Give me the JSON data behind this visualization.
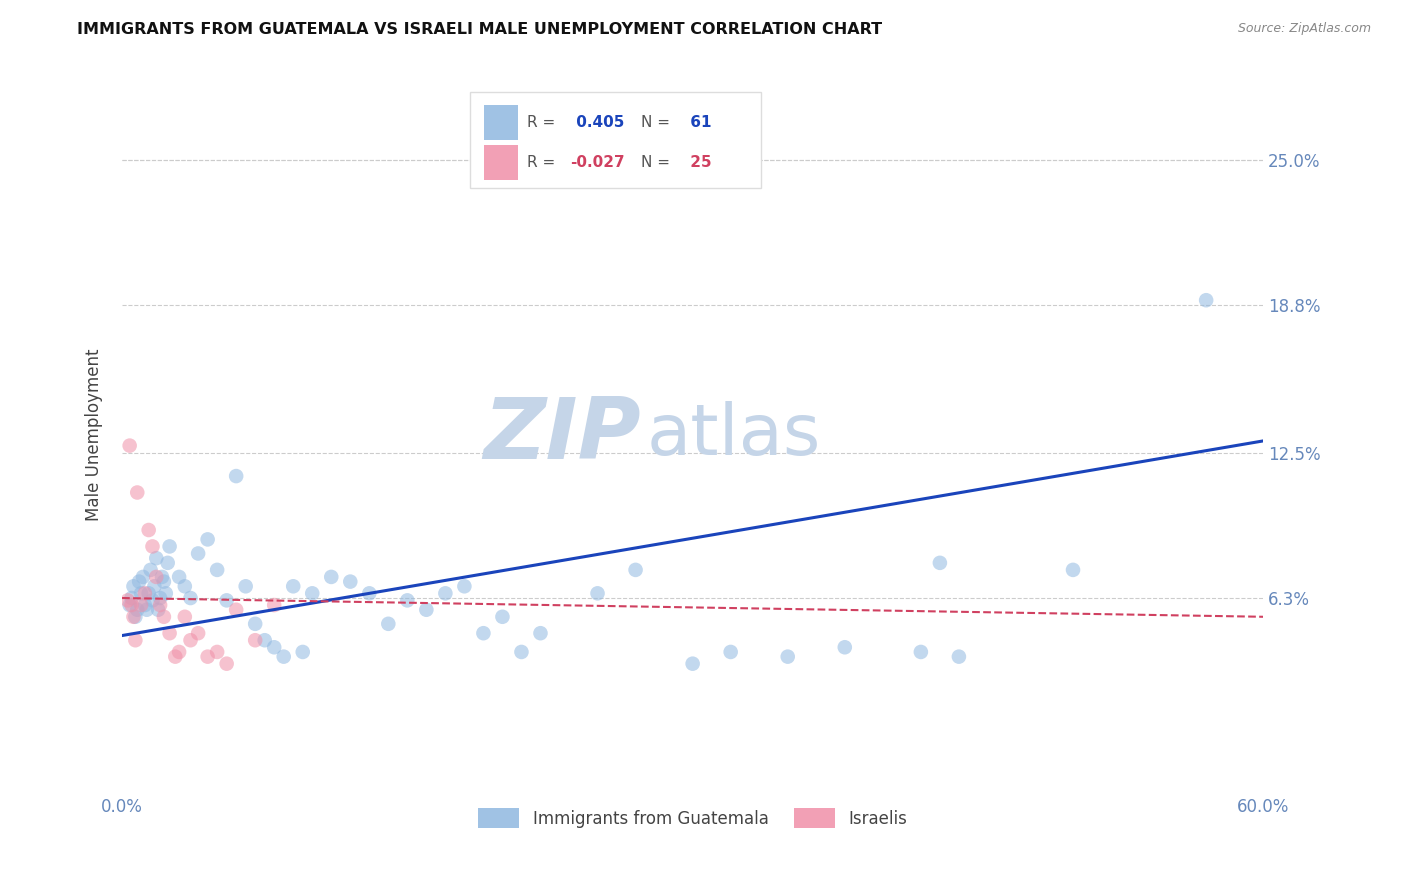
{
  "title": "IMMIGRANTS FROM GUATEMALA VS ISRAELI MALE UNEMPLOYMENT CORRELATION CHART",
  "source": "Source: ZipAtlas.com",
  "ylabel": "Male Unemployment",
  "xlim": [
    0.0,
    0.6
  ],
  "ylim": [
    -0.02,
    0.285
  ],
  "yticks": [
    0.063,
    0.125,
    0.188,
    0.25
  ],
  "ytick_labels": [
    "6.3%",
    "12.5%",
    "18.8%",
    "25.0%"
  ],
  "legend_R_blue": "0.405",
  "legend_N_blue": "61",
  "legend_R_pink": "-0.027",
  "legend_N_pink": "25",
  "legend_label_blue": "Immigrants from Guatemala",
  "legend_label_pink": "Israelis",
  "blue_scatter_x": [
    0.004,
    0.005,
    0.006,
    0.007,
    0.008,
    0.009,
    0.01,
    0.011,
    0.012,
    0.013,
    0.014,
    0.015,
    0.016,
    0.017,
    0.018,
    0.019,
    0.02,
    0.021,
    0.022,
    0.023,
    0.024,
    0.025,
    0.03,
    0.033,
    0.036,
    0.04,
    0.045,
    0.05,
    0.055,
    0.06,
    0.065,
    0.07,
    0.075,
    0.08,
    0.085,
    0.09,
    0.095,
    0.1,
    0.11,
    0.12,
    0.13,
    0.14,
    0.15,
    0.16,
    0.17,
    0.18,
    0.19,
    0.2,
    0.21,
    0.22,
    0.25,
    0.27,
    0.3,
    0.32,
    0.35,
    0.38,
    0.42,
    0.43,
    0.44,
    0.5,
    0.57
  ],
  "blue_scatter_y": [
    0.06,
    0.063,
    0.068,
    0.055,
    0.058,
    0.07,
    0.065,
    0.072,
    0.06,
    0.058,
    0.065,
    0.075,
    0.062,
    0.068,
    0.08,
    0.058,
    0.063,
    0.072,
    0.07,
    0.065,
    0.078,
    0.085,
    0.072,
    0.068,
    0.063,
    0.082,
    0.088,
    0.075,
    0.062,
    0.115,
    0.068,
    0.052,
    0.045,
    0.042,
    0.038,
    0.068,
    0.04,
    0.065,
    0.072,
    0.07,
    0.065,
    0.052,
    0.062,
    0.058,
    0.065,
    0.068,
    0.048,
    0.055,
    0.04,
    0.048,
    0.065,
    0.075,
    0.035,
    0.04,
    0.038,
    0.042,
    0.04,
    0.078,
    0.038,
    0.075,
    0.19
  ],
  "pink_scatter_x": [
    0.003,
    0.004,
    0.005,
    0.006,
    0.007,
    0.008,
    0.01,
    0.012,
    0.014,
    0.016,
    0.018,
    0.02,
    0.022,
    0.025,
    0.028,
    0.03,
    0.033,
    0.036,
    0.04,
    0.045,
    0.05,
    0.055,
    0.06,
    0.07,
    0.08
  ],
  "pink_scatter_y": [
    0.062,
    0.128,
    0.06,
    0.055,
    0.045,
    0.108,
    0.06,
    0.065,
    0.092,
    0.085,
    0.072,
    0.06,
    0.055,
    0.048,
    0.038,
    0.04,
    0.055,
    0.045,
    0.048,
    0.038,
    0.04,
    0.035,
    0.058,
    0.045,
    0.06
  ],
  "blue_line_x": [
    0.0,
    0.6
  ],
  "blue_line_y": [
    0.047,
    0.13
  ],
  "pink_line_x": [
    0.0,
    0.6
  ],
  "pink_line_y": [
    0.063,
    0.055
  ],
  "dot_size": 110,
  "dot_alpha": 0.55,
  "scatter_color_blue": "#90b8e0",
  "scatter_color_pink": "#f090a8",
  "line_color_blue": "#1a44bb",
  "line_color_pink": "#d04060",
  "watermark_zip": "ZIP",
  "watermark_atlas": "atlas",
  "watermark_color": "#c5d5e8",
  "background_color": "#ffffff",
  "title_fontsize": 11.5,
  "axis_label_color": "#6688bb",
  "grid_color": "#cccccc",
  "legend_box_color": "#dddddd"
}
